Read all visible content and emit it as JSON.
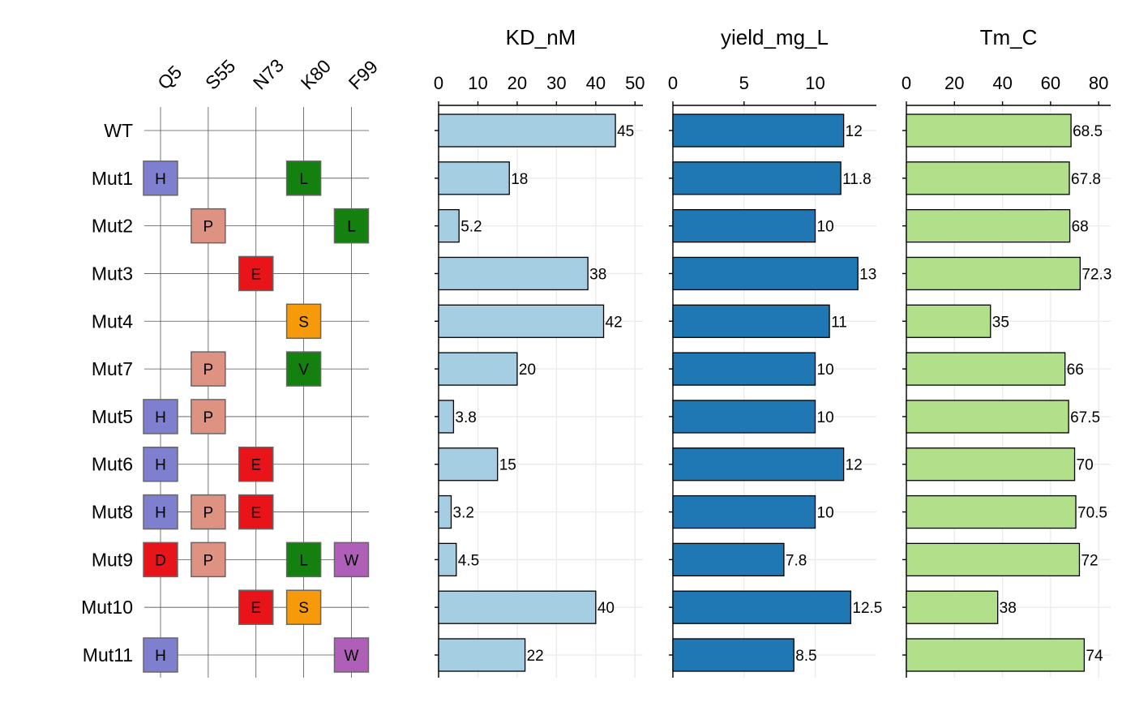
{
  "chart_data": {
    "type": "bar",
    "rows": [
      "WT",
      "Mut1",
      "Mut2",
      "Mut3",
      "Mut4",
      "Mut7",
      "Mut5",
      "Mut6",
      "Mut8",
      "Mut9",
      "Mut10",
      "Mut11"
    ],
    "positions": [
      "Q5",
      "S55",
      "N73",
      "K80",
      "F99"
    ],
    "mutations": [
      [],
      [
        {
          "pos": "Q5",
          "aa": "H"
        },
        {
          "pos": "K80",
          "aa": "L"
        }
      ],
      [
        {
          "pos": "S55",
          "aa": "P"
        },
        {
          "pos": "F99",
          "aa": "L"
        }
      ],
      [
        {
          "pos": "N73",
          "aa": "E"
        }
      ],
      [
        {
          "pos": "K80",
          "aa": "S"
        }
      ],
      [
        {
          "pos": "S55",
          "aa": "P"
        },
        {
          "pos": "K80",
          "aa": "V"
        }
      ],
      [
        {
          "pos": "Q5",
          "aa": "H"
        },
        {
          "pos": "S55",
          "aa": "P"
        }
      ],
      [
        {
          "pos": "Q5",
          "aa": "H"
        },
        {
          "pos": "N73",
          "aa": "E"
        }
      ],
      [
        {
          "pos": "Q5",
          "aa": "H"
        },
        {
          "pos": "S55",
          "aa": "P"
        },
        {
          "pos": "N73",
          "aa": "E"
        }
      ],
      [
        {
          "pos": "Q5",
          "aa": "D"
        },
        {
          "pos": "S55",
          "aa": "P"
        },
        {
          "pos": "K80",
          "aa": "L"
        },
        {
          "pos": "F99",
          "aa": "W"
        }
      ],
      [
        {
          "pos": "N73",
          "aa": "E"
        },
        {
          "pos": "K80",
          "aa": "S"
        }
      ],
      [
        {
          "pos": "Q5",
          "aa": "H"
        },
        {
          "pos": "F99",
          "aa": "W"
        }
      ]
    ],
    "aa_colors": {
      "H": "#7f7fcf",
      "L": "#13800f",
      "P": "#dd9282",
      "E": "#e8141a",
      "S": "#f69a0a",
      "V": "#13800f",
      "D": "#e8141a",
      "W": "#b05fb8"
    },
    "panels": [
      {
        "title": "KD_nM",
        "color": "#a6cee3",
        "xlim": [
          0,
          52
        ],
        "ticks": [
          0,
          10,
          20,
          30,
          40,
          50
        ],
        "values": [
          45,
          18,
          5.2,
          38,
          42,
          20,
          3.8,
          15,
          3.2,
          4.5,
          40,
          22
        ],
        "labels": [
          "45",
          "18",
          "5.2",
          "38",
          "42",
          "20",
          "3.8",
          "15",
          "3.2",
          "4.5",
          "40",
          "22"
        ]
      },
      {
        "title": "yield_mg_L",
        "color": "#1f78b4",
        "xlim": [
          0,
          14.3
        ],
        "ticks": [
          0,
          5,
          10
        ],
        "values": [
          12,
          11.8,
          10,
          13,
          11,
          10,
          10,
          12,
          10,
          7.8,
          12.5,
          8.5
        ],
        "labels": [
          "12",
          "11.8",
          "10",
          "13",
          "11",
          "10",
          "10",
          "12",
          "10",
          "7.8",
          "12.5",
          "8.5"
        ]
      },
      {
        "title": "Tm_C",
        "color": "#b2df8a",
        "xlim": [
          0,
          85
        ],
        "ticks": [
          0,
          20,
          40,
          60,
          80
        ],
        "values": [
          68.5,
          67.8,
          68,
          72.3,
          35,
          66,
          67.5,
          70,
          70.5,
          72,
          38,
          74
        ],
        "labels": [
          "68.5",
          "67.8",
          "68",
          "72.3",
          "35",
          "66",
          "67.5",
          "70",
          "70.5",
          "72",
          "38",
          "74"
        ]
      }
    ]
  }
}
